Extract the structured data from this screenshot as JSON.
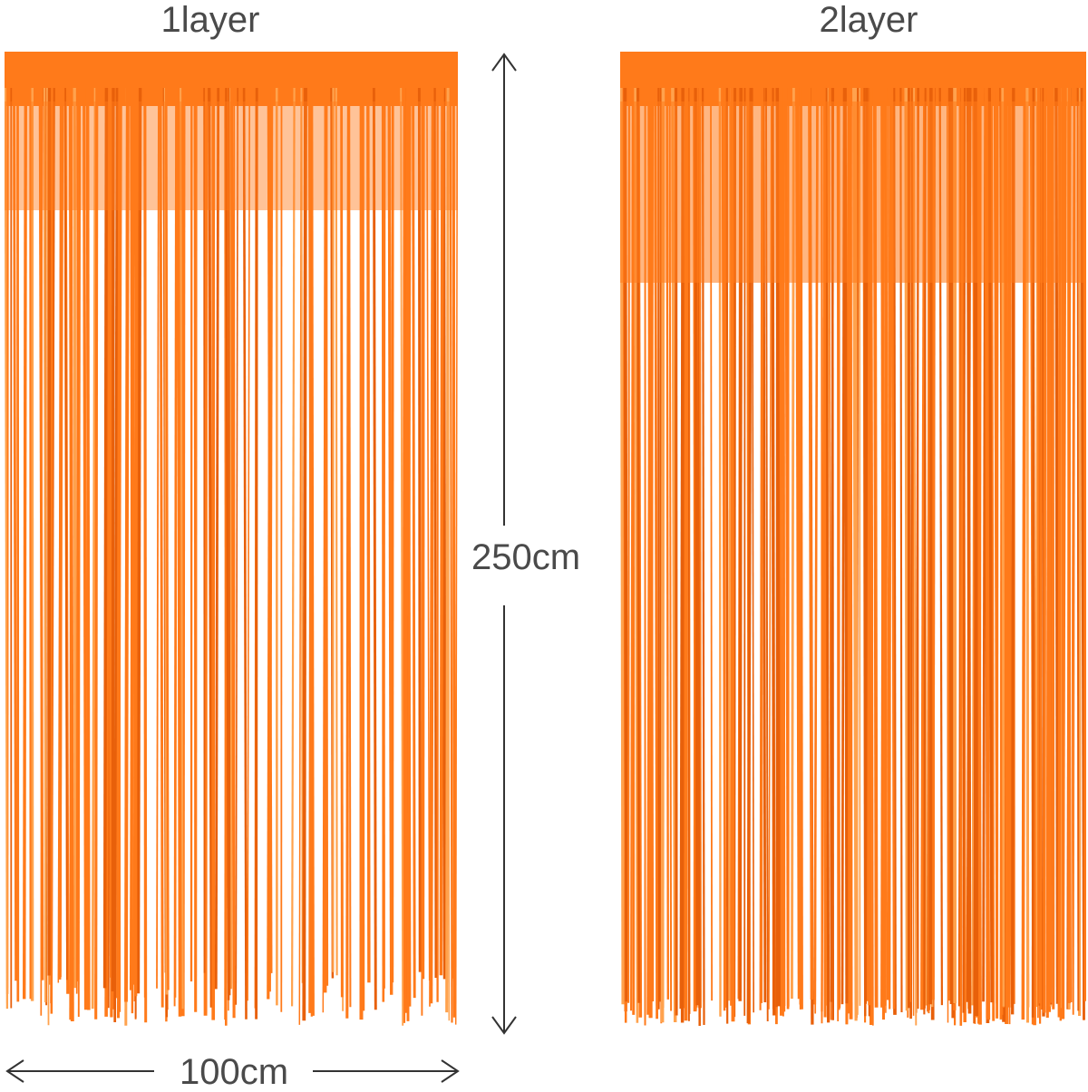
{
  "curtains": [
    {
      "label": "1layer",
      "layers": 1
    },
    {
      "label": "2layer",
      "layers": 2
    }
  ],
  "dimensions": {
    "height": "250cm",
    "width": "100cm"
  },
  "colors": {
    "foil": "#ff7a1a",
    "foil_light": "#ffa24d",
    "foil_dark": "#e8600a",
    "background": "#ffffff",
    "text": "#4a4a4a",
    "arrow": "#333333"
  }
}
